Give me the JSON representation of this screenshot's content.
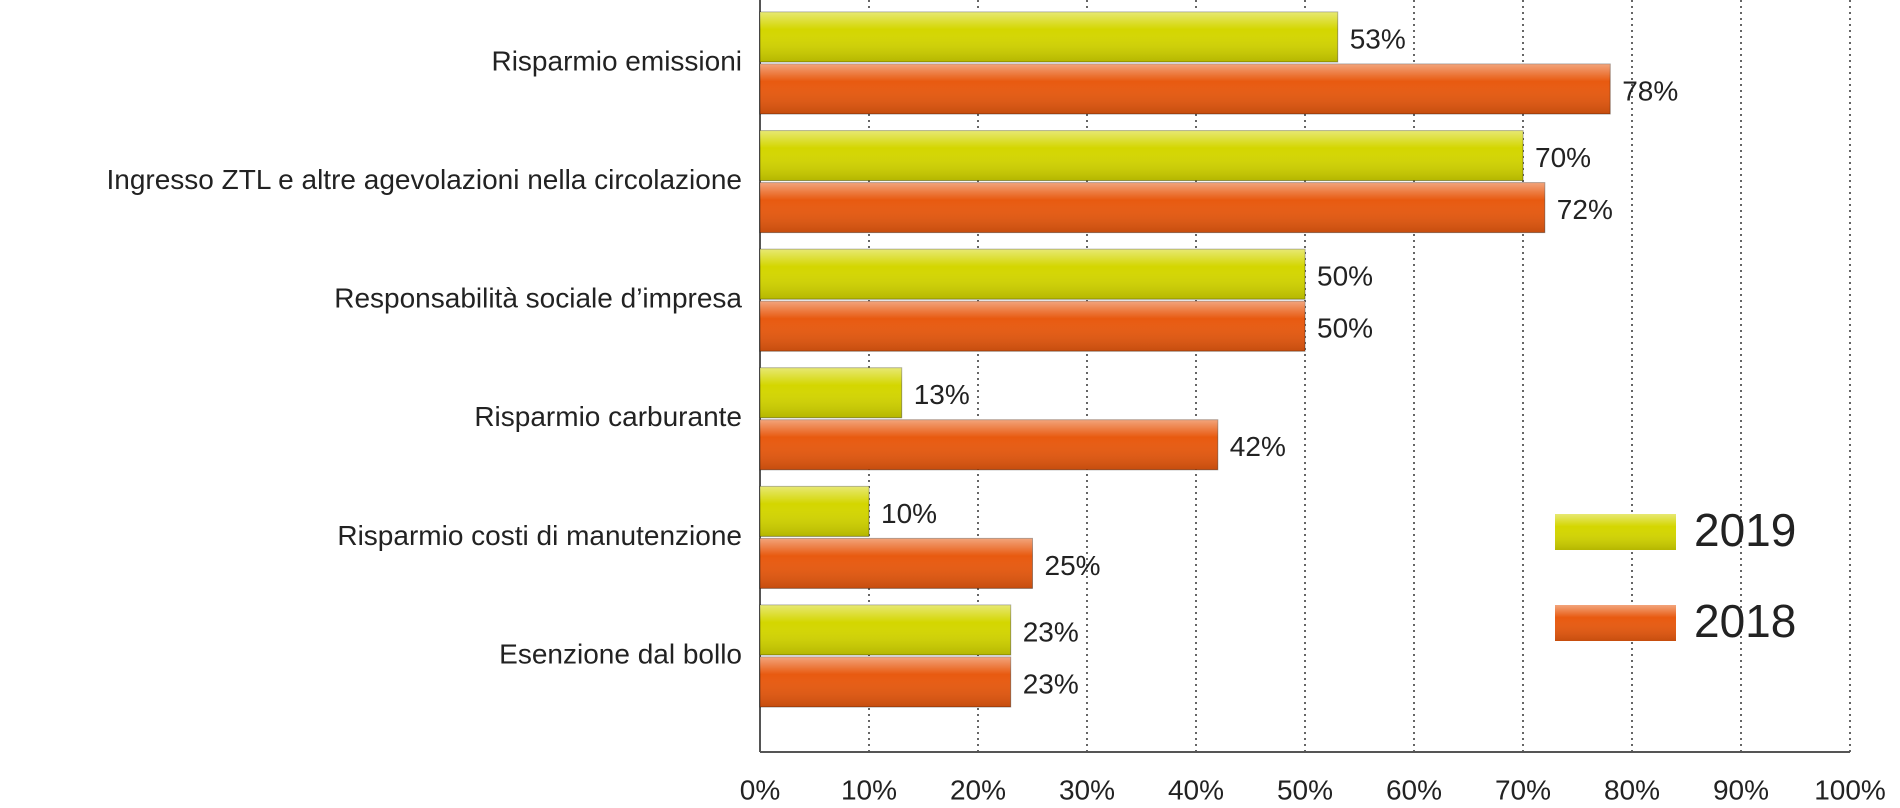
{
  "chart_data": {
    "type": "hbar",
    "categories": [
      "Risparmio emissioni",
      "Ingresso ZTL e altre agevolazioni nella circolazione",
      "Responsabilità sociale d’impresa",
      "Risparmio carburante",
      "Risparmio costi di manutenzione",
      "Esenzione dal bollo"
    ],
    "series": [
      {
        "name": "2019",
        "color": "#d4d600",
        "values": [
          53,
          70,
          50,
          13,
          10,
          23
        ],
        "value_labels": [
          "53%",
          "70%",
          "50%",
          "13%",
          "10%",
          "23%"
        ]
      },
      {
        "name": "2018",
        "color": "#e85a10",
        "values": [
          78,
          72,
          50,
          42,
          25,
          23
        ],
        "value_labels": [
          "78%",
          "72%",
          "50%",
          "42%",
          "25%",
          "23%"
        ]
      }
    ],
    "xlim": [
      0,
      100
    ],
    "xticks": [
      {
        "value": 0,
        "label": "0%"
      },
      {
        "value": 10,
        "label": "10%"
      },
      {
        "value": 20,
        "label": "20%"
      },
      {
        "value": 30,
        "label": "30%"
      },
      {
        "value": 40,
        "label": "40%"
      },
      {
        "value": 50,
        "label": "50%"
      },
      {
        "value": 60,
        "label": "60%"
      },
      {
        "value": 70,
        "label": "70%"
      },
      {
        "value": 80,
        "label": "80%"
      },
      {
        "value": 90,
        "label": "90%"
      },
      {
        "value": 100,
        "label": "100%"
      }
    ],
    "grid": true,
    "legend": "lower right"
  }
}
